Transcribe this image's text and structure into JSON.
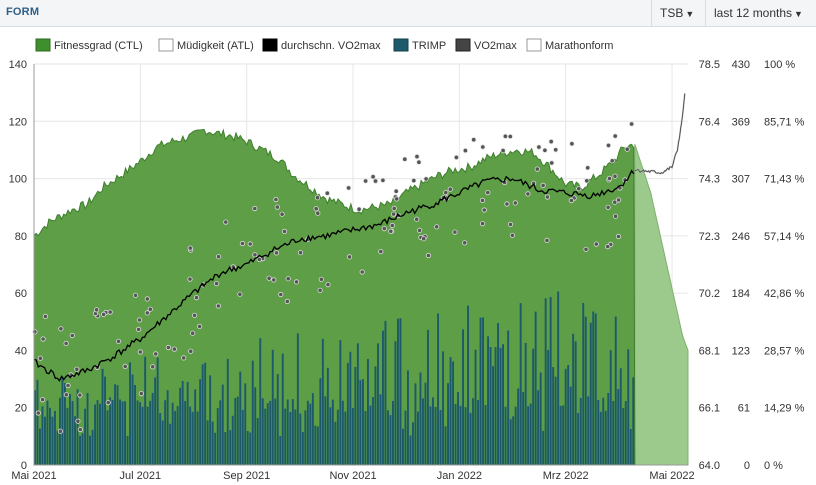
{
  "header": {
    "title": "FORM",
    "metric_button": "TSB",
    "range_button": "last 12 months"
  },
  "colors": {
    "fitness": "#5d9e47",
    "fitness_future": "#9cc98c",
    "trimp": "#1c5a6b",
    "vo2": "#000000",
    "grid": "#e6e6e6"
  },
  "chart_data": {
    "type": "area",
    "legend": [
      {
        "name": "Fitnessgrad (CTL)",
        "color": "#3f8f2e",
        "outline": "#2d6a20"
      },
      {
        "name": "Müdigkeit (ATL)",
        "color": "#ffffff",
        "outline": "#999999"
      },
      {
        "name": "durchschn. VO2max",
        "color": "#000000",
        "outline": "#000000"
      },
      {
        "name": "TRIMP",
        "color": "#1c5a6b",
        "outline": "#143f4b"
      },
      {
        "name": "VO2max",
        "color": "#444444",
        "outline": "#222222"
      },
      {
        "name": "Marathonform",
        "color": "#ffffff",
        "outline": "#999999"
      }
    ],
    "x_axis": {
      "labels": [
        "Mai 2021",
        "Jul 2021",
        "Sep 2021",
        "Nov 2021",
        "Jan 2022",
        "Mrz 2022",
        "Mai 2022"
      ],
      "months": [
        0,
        2,
        4,
        6,
        8,
        10,
        12
      ],
      "range_months": [
        0,
        12.3
      ]
    },
    "y_axes": [
      {
        "id": "ctl",
        "min": 0,
        "max": 140,
        "ticks": [
          "0",
          "20",
          "40",
          "60",
          "80",
          "100",
          "120",
          "140"
        ]
      },
      {
        "id": "vo2max",
        "min": 64.0,
        "max": 78.5,
        "ticks": [
          "64.0",
          "66.1",
          "68.1",
          "70.2",
          "72.3",
          "74.3",
          "76.4",
          "78.5"
        ]
      },
      {
        "id": "trimp",
        "min": 0,
        "max": 430,
        "ticks": [
          "0",
          "61",
          "123",
          "184",
          "246",
          "307",
          "369",
          "430"
        ]
      },
      {
        "id": "marathon",
        "min": 0,
        "max": 100,
        "ticks": [
          "0 %",
          "14,29 %",
          "28,57 %",
          "42,86 %",
          "57,14 %",
          "71,43 %",
          "85,71 %",
          "100 %"
        ]
      }
    ],
    "today_month": 11.3,
    "ctl": [
      [
        0,
        80
      ],
      [
        0.3,
        85
      ],
      [
        0.7,
        89
      ],
      [
        1,
        91
      ],
      [
        1.3,
        97
      ],
      [
        1.7,
        102
      ],
      [
        2,
        106
      ],
      [
        2.3,
        111
      ],
      [
        2.6,
        113
      ],
      [
        3,
        115
      ],
      [
        3.2,
        117
      ],
      [
        3.4,
        116
      ],
      [
        3.7,
        115
      ],
      [
        4,
        113
      ],
      [
        4.3,
        110
      ],
      [
        4.6,
        107
      ],
      [
        4.9,
        101
      ],
      [
        5.2,
        97
      ],
      [
        5.5,
        93
      ],
      [
        5.8,
        91
      ],
      [
        6.1,
        89
      ],
      [
        6.4,
        90
      ],
      [
        6.7,
        91
      ],
      [
        7,
        95
      ],
      [
        7.3,
        98
      ],
      [
        7.6,
        101
      ],
      [
        7.9,
        103
      ],
      [
        8.2,
        104
      ],
      [
        8.5,
        107
      ],
      [
        8.8,
        109
      ],
      [
        9.1,
        110
      ],
      [
        9.4,
        109
      ],
      [
        9.7,
        104
      ],
      [
        10,
        98
      ],
      [
        10.3,
        97
      ],
      [
        10.6,
        101
      ],
      [
        10.9,
        106
      ],
      [
        11.1,
        111
      ],
      [
        11.3,
        112
      ],
      [
        11.6,
        95
      ],
      [
        11.9,
        70
      ],
      [
        12.2,
        45
      ],
      [
        12.6,
        25
      ]
    ],
    "trimp_bars": {
      "start": 0,
      "end": 11.3,
      "count": 240,
      "typical_min": 10,
      "typical_max": 65
    },
    "vo2avg": [
      [
        0,
        36
      ],
      [
        0.5,
        30
      ],
      [
        1,
        33
      ],
      [
        1.5,
        38
      ],
      [
        2,
        44
      ],
      [
        2.5,
        52
      ],
      [
        3,
        60
      ],
      [
        3.5,
        67
      ],
      [
        4,
        70
      ],
      [
        4.5,
        75
      ],
      [
        5,
        79
      ],
      [
        5.5,
        80
      ],
      [
        6,
        82
      ],
      [
        6.5,
        84
      ],
      [
        7,
        88
      ],
      [
        7.5,
        91
      ],
      [
        8,
        95
      ],
      [
        8.5,
        99
      ],
      [
        9,
        100
      ],
      [
        9.5,
        96
      ],
      [
        10,
        95
      ],
      [
        10.5,
        94
      ],
      [
        11,
        97
      ],
      [
        11.3,
        103
      ]
    ],
    "marathon_form": [
      [
        11.3,
        103
      ],
      [
        11.8,
        102
      ],
      [
        12.0,
        104
      ],
      [
        12.1,
        110
      ],
      [
        12.2,
        122
      ],
      [
        12.25,
        132
      ]
    ],
    "vo2_points_count": 170
  }
}
